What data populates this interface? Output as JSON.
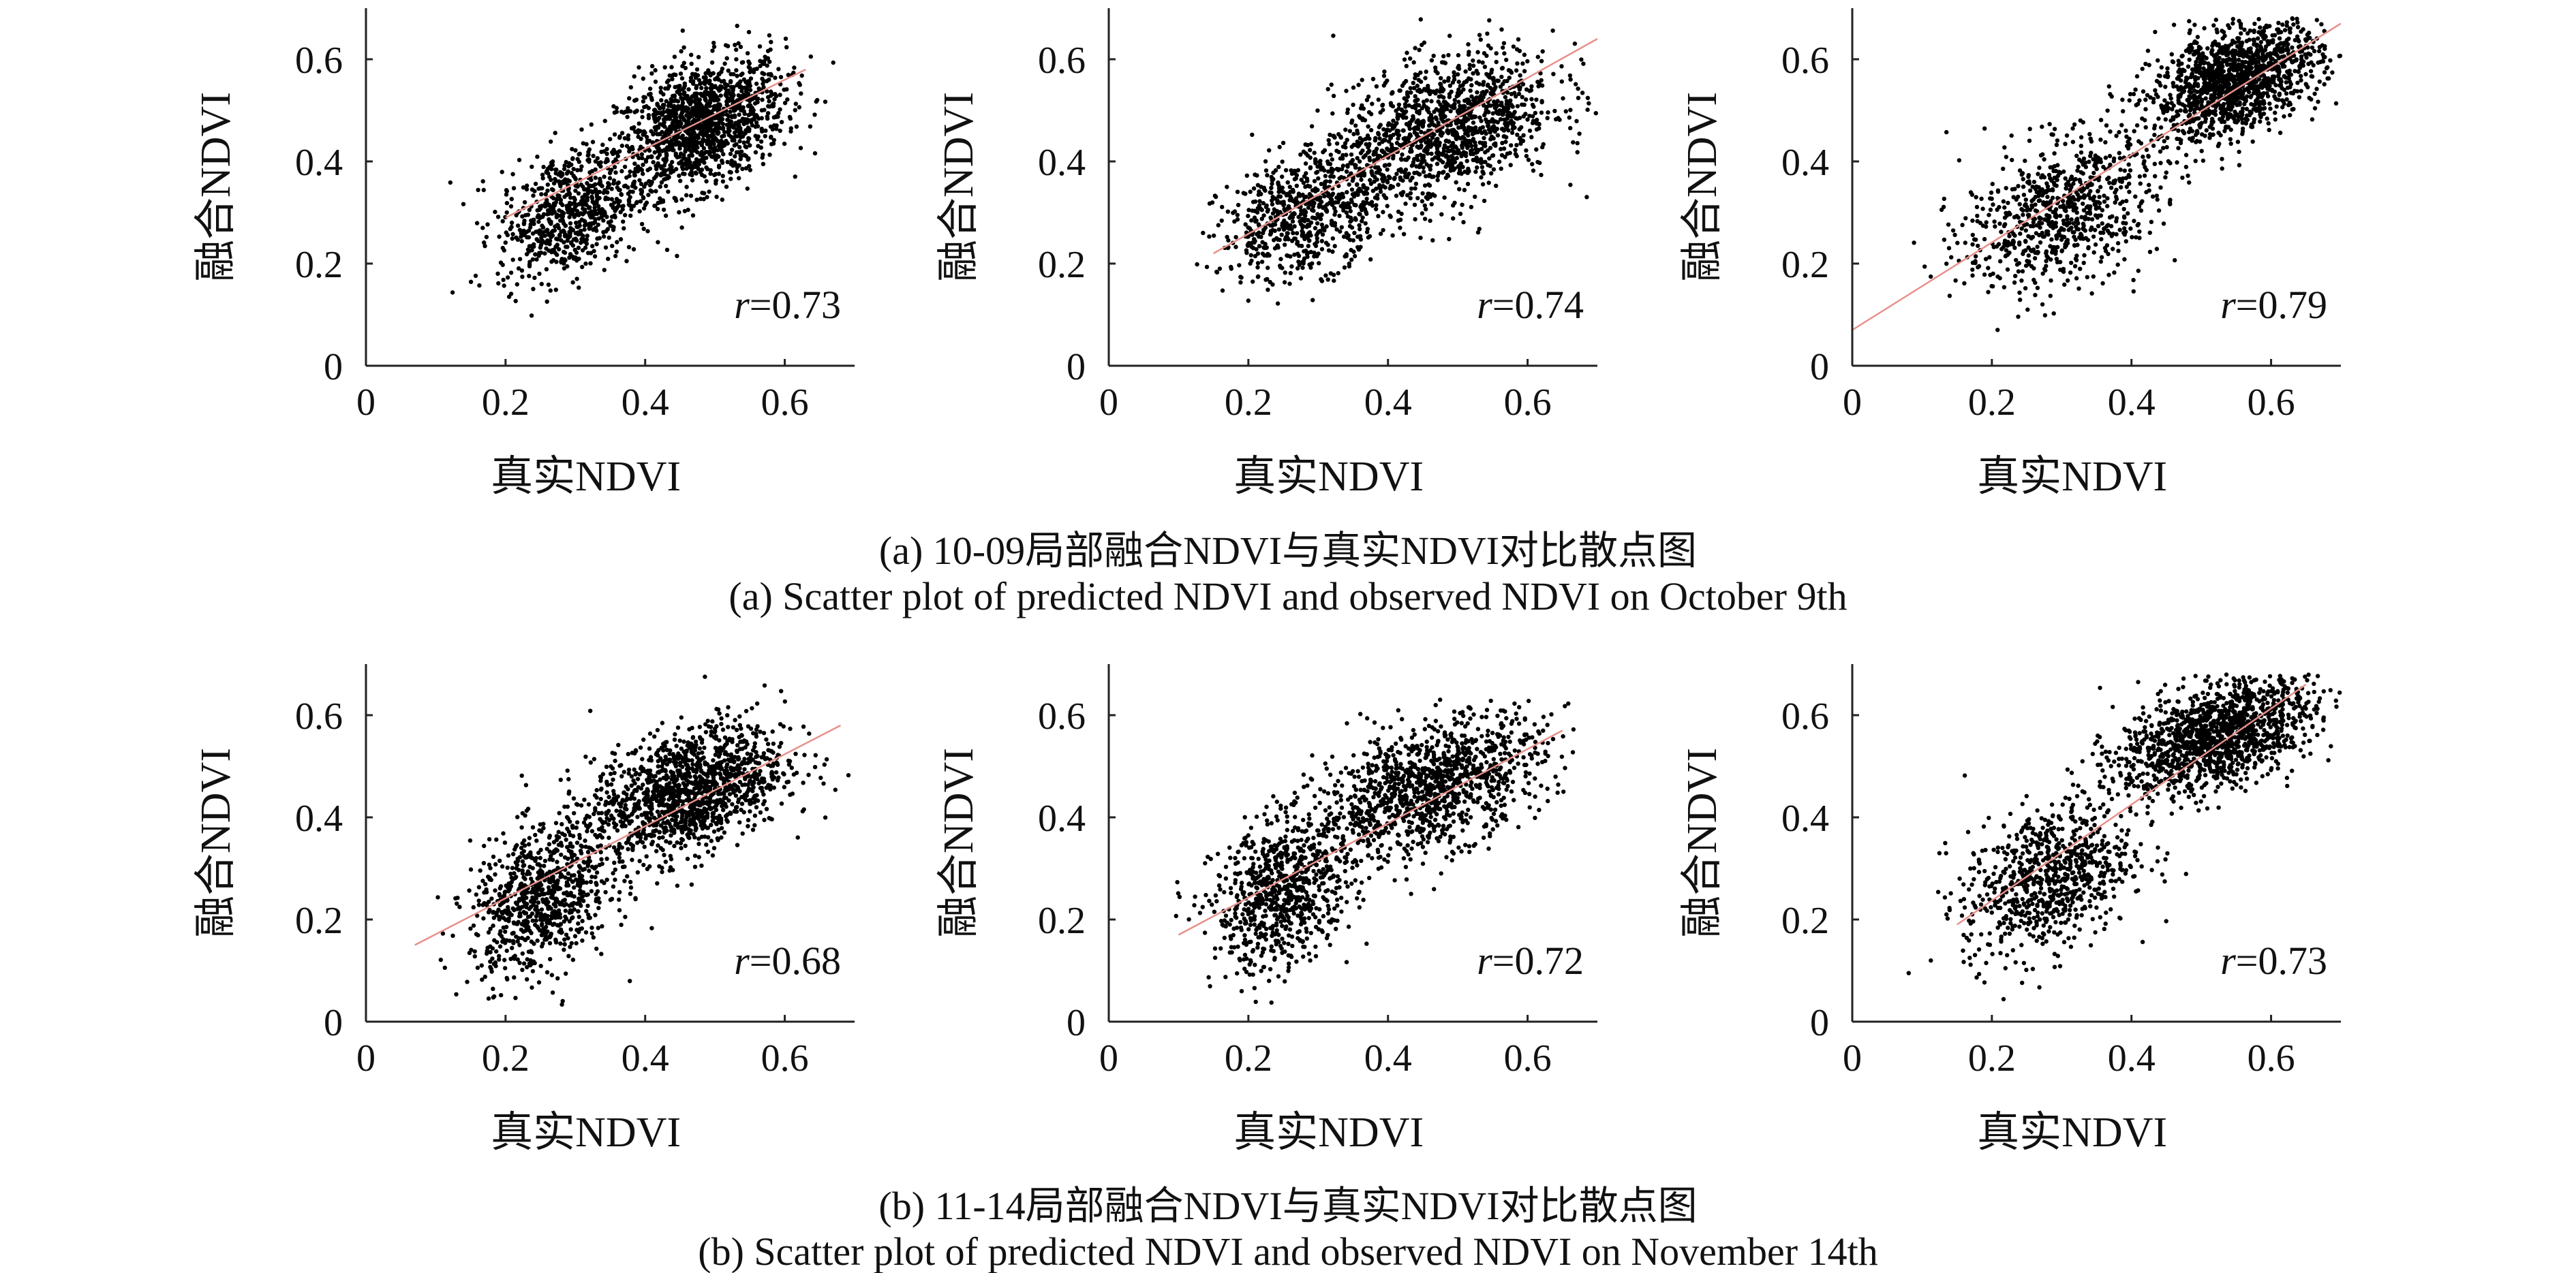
{
  "figure": {
    "rows": [
      {
        "caption_cn": "(a) 10-09局部融合NDVI与真实NDVI对比散点图",
        "caption_en": "(a) Scatter plot of predicted NDVI and observed NDVI on October 9th"
      },
      {
        "caption_cn": "(b) 11-14局部融合NDVI与真实NDVI对比散点图",
        "caption_en": "(b) Scatter plot of predicted NDVI and observed NDVI on November 14th"
      }
    ]
  },
  "chart_data": [
    {
      "type": "scatter",
      "xlabel": "真实NDVI",
      "ylabel": "融合NDVI",
      "xlim": [
        0,
        0.7
      ],
      "ylim": [
        0,
        0.7
      ],
      "xticks": [
        "0",
        "0.2",
        "0.4",
        "0.6"
      ],
      "yticks": [
        "0",
        "0.2",
        "0.4",
        "0.6"
      ],
      "r_prefix": "r",
      "r_value": "=0.73",
      "fit_line": [
        [
          0.2,
          0.29
        ],
        [
          0.63,
          0.58
        ]
      ],
      "point_colour": "#000000",
      "fit_colour": "#e8908a",
      "clusters": [
        {
          "cx": 0.48,
          "cy": 0.47,
          "sx": 0.06,
          "sy": 0.06,
          "n": 1400
        },
        {
          "cx": 0.29,
          "cy": 0.3,
          "sx": 0.05,
          "sy": 0.06,
          "n": 700
        }
      ]
    },
    {
      "type": "scatter",
      "xlabel": "真实NDVI",
      "ylabel": "融合NDVI",
      "xlim": [
        0,
        0.7
      ],
      "ylim": [
        0,
        0.7
      ],
      "xticks": [
        "0",
        "0.2",
        "0.4",
        "0.6"
      ],
      "yticks": [
        "0",
        "0.2",
        "0.4",
        "0.6"
      ],
      "r_prefix": "r",
      "r_value": "=0.74",
      "fit_line": [
        [
          0.15,
          0.22
        ],
        [
          0.7,
          0.64
        ]
      ],
      "point_colour": "#000000",
      "fit_colour": "#e8908a",
      "clusters": [
        {
          "cx": 0.48,
          "cy": 0.46,
          "sx": 0.08,
          "sy": 0.07,
          "n": 1300
        },
        {
          "cx": 0.28,
          "cy": 0.3,
          "sx": 0.06,
          "sy": 0.06,
          "n": 700
        }
      ]
    },
    {
      "type": "scatter",
      "xlabel": "真实NDVI",
      "ylabel": "融合NDVI",
      "xlim": [
        0,
        0.7
      ],
      "ylim": [
        0,
        0.7
      ],
      "xticks": [
        "0",
        "0.2",
        "0.4",
        "0.6"
      ],
      "yticks": [
        "0",
        "0.2",
        "0.4",
        "0.6"
      ],
      "r_prefix": "r",
      "r_value": "=0.79",
      "fit_line": [
        [
          0.0,
          0.07
        ],
        [
          0.7,
          0.67
        ]
      ],
      "point_colour": "#000000",
      "fit_colour": "#e8908a",
      "clusters": [
        {
          "cx": 0.55,
          "cy": 0.56,
          "sx": 0.06,
          "sy": 0.05,
          "n": 1400
        },
        {
          "cx": 0.3,
          "cy": 0.3,
          "sx": 0.07,
          "sy": 0.07,
          "n": 800
        }
      ]
    },
    {
      "type": "scatter",
      "xlabel": "真实NDVI",
      "ylabel": "融合NDVI",
      "xlim": [
        0,
        0.7
      ],
      "ylim": [
        0,
        0.7
      ],
      "xticks": [
        "0",
        "0.2",
        "0.4",
        "0.6"
      ],
      "yticks": [
        "0",
        "0.2",
        "0.4",
        "0.6"
      ],
      "r_prefix": "r",
      "r_value": "=0.68",
      "fit_line": [
        [
          0.07,
          0.15
        ],
        [
          0.68,
          0.58
        ]
      ],
      "point_colour": "#000000",
      "fit_colour": "#e8908a",
      "clusters": [
        {
          "cx": 0.46,
          "cy": 0.45,
          "sx": 0.07,
          "sy": 0.06,
          "n": 1400
        },
        {
          "cx": 0.25,
          "cy": 0.24,
          "sx": 0.05,
          "sy": 0.07,
          "n": 800
        }
      ]
    },
    {
      "type": "scatter",
      "xlabel": "真实NDVI",
      "ylabel": "融合NDVI",
      "xlim": [
        0,
        0.7
      ],
      "ylim": [
        0,
        0.7
      ],
      "xticks": [
        "0",
        "0.2",
        "0.4",
        "0.6"
      ],
      "yticks": [
        "0",
        "0.2",
        "0.4",
        "0.6"
      ],
      "r_prefix": "r",
      "r_value": "=0.72",
      "fit_line": [
        [
          0.1,
          0.17
        ],
        [
          0.65,
          0.57
        ]
      ],
      "point_colour": "#000000",
      "fit_colour": "#e8908a",
      "clusters": [
        {
          "cx": 0.46,
          "cy": 0.46,
          "sx": 0.08,
          "sy": 0.06,
          "n": 1200
        },
        {
          "cx": 0.25,
          "cy": 0.25,
          "sx": 0.05,
          "sy": 0.07,
          "n": 800
        }
      ]
    },
    {
      "type": "scatter",
      "xlabel": "真实NDVI",
      "ylabel": "融合NDVI",
      "xlim": [
        0,
        0.7
      ],
      "ylim": [
        0,
        0.7
      ],
      "xticks": [
        "0",
        "0.2",
        "0.4",
        "0.6"
      ],
      "yticks": [
        "0",
        "0.2",
        "0.4",
        "0.6"
      ],
      "r_prefix": "r",
      "r_value": "=0.73",
      "fit_line": [
        [
          0.15,
          0.19
        ],
        [
          0.65,
          0.66
        ]
      ],
      "point_colour": "#000000",
      "fit_colour": "#e8908a",
      "clusters": [
        {
          "cx": 0.52,
          "cy": 0.56,
          "sx": 0.07,
          "sy": 0.05,
          "n": 1400
        },
        {
          "cx": 0.28,
          "cy": 0.28,
          "sx": 0.06,
          "sy": 0.07,
          "n": 800
        }
      ]
    }
  ]
}
